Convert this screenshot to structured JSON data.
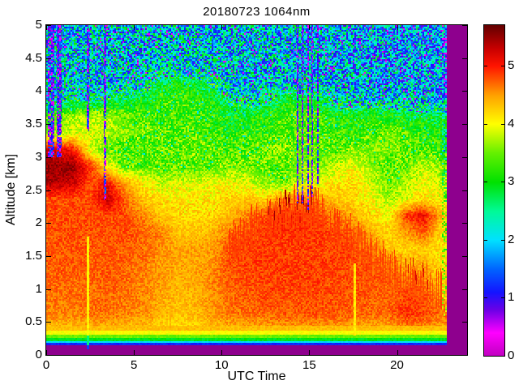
{
  "figure": {
    "title": "20180723 1064nm",
    "background_color": "#FFFFFF"
  },
  "chart_data": {
    "type": "heatmap",
    "title": "20180723 1064nm",
    "xlabel": "UTC Time",
    "ylabel": "Altitude [km]",
    "x_range": [
      0,
      24
    ],
    "x_ticks": [
      0,
      5,
      10,
      15,
      20
    ],
    "y_range": [
      0,
      5
    ],
    "y_ticks": [
      0,
      0.5,
      1,
      1.5,
      2,
      2.5,
      3,
      3.5,
      4,
      4.5,
      5
    ],
    "data_end_time": 22.8,
    "no_data_color": "#8E008E",
    "colorbar": {
      "range": [
        0,
        5.7
      ],
      "ticks": [
        0,
        1,
        2,
        3,
        4,
        5
      ],
      "position": "right"
    },
    "colormap_stops": [
      [
        0.0,
        "#C000C0"
      ],
      [
        0.4,
        "#FF00FF"
      ],
      [
        0.8,
        "#6A00E6"
      ],
      [
        1.1,
        "#1414FF"
      ],
      [
        1.5,
        "#0064FF"
      ],
      [
        2.0,
        "#00E1FF"
      ],
      [
        2.5,
        "#00FA96"
      ],
      [
        3.0,
        "#00E100"
      ],
      [
        3.5,
        "#64F000"
      ],
      [
        4.0,
        "#FFFF00"
      ],
      [
        4.5,
        "#FFA000"
      ],
      [
        5.0,
        "#FF1400"
      ],
      [
        5.3,
        "#C80000"
      ],
      [
        5.7,
        "#640000"
      ]
    ],
    "grid": {
      "description": "Coarse attenuated-backscatter field (log-scaled colorbar units 0-5.7). Columns are hourly bins centered 0.5..23.5 UTC; rows are 0.25 km bins from 4.875 km (top) down to 0.125 km.",
      "t_center_start": 0.5,
      "t_step": 1.0,
      "z_top": 4.875,
      "z_step": 0.25,
      "values_rows_top_to_bottom": [
        [
          2.1,
          2.1,
          2.05,
          2.05,
          2.0,
          2.05,
          2.1,
          2.1,
          2.05,
          2.0,
          2.0,
          1.95,
          2.0,
          2.0,
          2.05,
          2.0,
          1.9,
          1.85,
          1.8,
          1.85,
          1.8,
          1.85,
          1.8,
          1.8
        ],
        [
          2.15,
          2.1,
          2.1,
          2.05,
          2.05,
          2.1,
          2.1,
          2.1,
          2.05,
          2.05,
          2.0,
          2.0,
          2.0,
          2.05,
          2.0,
          2.0,
          1.9,
          1.85,
          1.85,
          1.8,
          1.85,
          1.8,
          1.8,
          1.8
        ],
        [
          2.2,
          2.15,
          2.1,
          2.1,
          2.1,
          2.1,
          2.15,
          2.1,
          2.1,
          2.05,
          2.05,
          2.0,
          2.05,
          2.0,
          2.05,
          2.0,
          1.95,
          1.9,
          1.85,
          1.85,
          1.8,
          1.85,
          1.8,
          1.8
        ],
        [
          2.2,
          2.2,
          2.15,
          2.1,
          2.15,
          2.2,
          2.9,
          3.0,
          2.9,
          2.6,
          2.1,
          2.05,
          2.1,
          2.1,
          2.1,
          2.05,
          2.0,
          1.95,
          1.9,
          1.9,
          1.85,
          1.85,
          1.8,
          1.8
        ],
        [
          2.5,
          2.6,
          2.6,
          2.7,
          2.9,
          3.0,
          3.2,
          3.3,
          3.2,
          3.1,
          2.5,
          2.4,
          2.5,
          3.0,
          3.0,
          2.9,
          2.3,
          2.2,
          2.2,
          2.1,
          2.1,
          2.0,
          2.0,
          2.0
        ],
        [
          3.4,
          3.7,
          3.8,
          3.7,
          3.5,
          3.4,
          3.3,
          3.3,
          3.3,
          3.2,
          3.0,
          3.0,
          3.1,
          3.3,
          3.4,
          3.3,
          3.1,
          3.0,
          3.2,
          3.1,
          3.0,
          2.9,
          2.9,
          2.9
        ],
        [
          3.6,
          3.9,
          3.9,
          3.8,
          3.6,
          3.5,
          3.4,
          3.3,
          3.4,
          3.3,
          3.2,
          3.2,
          3.3,
          3.4,
          3.4,
          3.4,
          3.3,
          3.2,
          3.4,
          3.5,
          3.3,
          3.2,
          3.1,
          3.1
        ],
        [
          5.2,
          5.0,
          3.9,
          3.4,
          3.3,
          3.3,
          3.4,
          3.4,
          3.5,
          3.4,
          3.3,
          3.4,
          3.5,
          3.5,
          3.5,
          3.5,
          3.4,
          3.5,
          3.6,
          3.6,
          3.4,
          3.3,
          3.2,
          3.2
        ],
        [
          5.5,
          5.5,
          4.9,
          4.0,
          3.4,
          3.4,
          3.4,
          3.4,
          3.4,
          3.4,
          3.5,
          3.5,
          3.4,
          3.4,
          3.6,
          3.6,
          3.8,
          4.0,
          3.6,
          3.3,
          3.5,
          3.8,
          3.6,
          3.6
        ],
        [
          5.4,
          5.3,
          4.8,
          5.0,
          4.4,
          4.1,
          3.8,
          3.9,
          3.9,
          4.0,
          4.0,
          3.9,
          3.6,
          3.5,
          3.8,
          3.9,
          4.1,
          4.2,
          3.9,
          3.5,
          3.7,
          4.0,
          3.8,
          3.8
        ],
        [
          4.8,
          4.8,
          4.8,
          5.3,
          4.7,
          4.3,
          4.1,
          4.1,
          4.1,
          4.1,
          4.2,
          4.3,
          4.2,
          4.5,
          4.6,
          4.5,
          4.3,
          4.2,
          4.0,
          3.7,
          3.9,
          4.2,
          4.0,
          4.0
        ],
        [
          4.8,
          4.8,
          4.8,
          4.8,
          4.8,
          4.6,
          4.3,
          4.2,
          4.2,
          4.2,
          4.4,
          4.6,
          4.8,
          5.0,
          5.0,
          4.8,
          4.6,
          4.4,
          4.2,
          4.0,
          4.9,
          5.1,
          4.4,
          4.4
        ],
        [
          4.8,
          4.8,
          4.8,
          4.8,
          4.8,
          4.7,
          4.6,
          4.3,
          4.3,
          4.4,
          4.6,
          4.8,
          4.9,
          4.9,
          4.9,
          4.9,
          4.8,
          4.7,
          4.4,
          4.2,
          4.5,
          4.8,
          4.2,
          4.2
        ],
        [
          4.75,
          4.75,
          4.75,
          4.75,
          4.75,
          4.7,
          4.55,
          4.45,
          4.45,
          4.5,
          4.8,
          4.85,
          4.85,
          4.85,
          4.85,
          4.85,
          4.85,
          4.8,
          4.6,
          4.3,
          4.2,
          4.3,
          4.1,
          4.1
        ],
        [
          4.75,
          4.75,
          4.75,
          4.75,
          4.7,
          4.65,
          4.5,
          4.45,
          4.45,
          4.55,
          4.8,
          4.85,
          4.85,
          4.85,
          4.85,
          4.85,
          4.85,
          4.8,
          4.8,
          4.6,
          4.4,
          4.4,
          4.2,
          4.2
        ],
        [
          4.7,
          4.7,
          4.7,
          4.75,
          4.7,
          4.6,
          4.5,
          4.4,
          4.45,
          4.6,
          4.75,
          4.8,
          4.85,
          4.85,
          4.85,
          4.85,
          4.8,
          4.8,
          4.8,
          4.7,
          4.7,
          4.6,
          4.3,
          4.3
        ],
        [
          4.65,
          4.65,
          4.7,
          4.7,
          4.65,
          4.6,
          4.45,
          4.35,
          4.4,
          4.55,
          4.7,
          4.75,
          4.8,
          4.8,
          4.8,
          4.8,
          4.8,
          4.75,
          4.75,
          4.7,
          4.85,
          4.8,
          4.6,
          4.6
        ],
        [
          4.6,
          4.6,
          4.65,
          4.65,
          4.6,
          4.55,
          4.4,
          4.3,
          4.35,
          4.5,
          4.65,
          4.7,
          4.7,
          4.75,
          4.75,
          4.75,
          4.75,
          4.7,
          4.7,
          4.7,
          4.9,
          4.85,
          4.7,
          4.7
        ],
        [
          4.3,
          4.3,
          4.35,
          4.35,
          4.3,
          4.3,
          4.2,
          4.15,
          4.2,
          4.3,
          4.35,
          4.4,
          4.4,
          4.45,
          4.45,
          4.45,
          4.45,
          4.4,
          4.4,
          4.4,
          4.55,
          4.5,
          4.4,
          4.4
        ],
        [
          3.0,
          3.0,
          3.0,
          3.0,
          3.0,
          3.0,
          3.0,
          3.0,
          3.0,
          3.0,
          3.0,
          3.0,
          3.0,
          3.0,
          3.0,
          3.0,
          3.0,
          3.0,
          3.0,
          3.0,
          3.0,
          3.0,
          3.0,
          3.0
        ]
      ]
    },
    "aerosol_layer_top_km": [
      3.0,
      2.95,
      2.85,
      2.7,
      2.55,
      2.3,
      1.9,
      1.65,
      1.55,
      1.6,
      1.75,
      1.95,
      2.1,
      2.25,
      2.3,
      2.25,
      2.05,
      1.85,
      1.6,
      1.4,
      1.25,
      1.15,
      1.05,
      1.0
    ],
    "surface_bands": [
      {
        "z0": 0.0,
        "z1": 0.15,
        "type": "no_data"
      },
      {
        "z0": 0.15,
        "z1": 0.185,
        "value": 1.2
      },
      {
        "z0": 0.185,
        "z1": 0.21,
        "value": 2.0
      },
      {
        "z0": 0.21,
        "z1": 0.27,
        "value": 2.9
      },
      {
        "z0": 0.27,
        "z1": 0.31,
        "value": 3.5
      },
      {
        "z0": 0.31,
        "z1": 0.37,
        "value": 4.0
      },
      {
        "z0": 0.37,
        "z1": 0.45,
        "value": 4.35
      }
    ],
    "attenuation_gaps": [
      {
        "t0": 0.05,
        "t1": 0.45,
        "z0": 3.0,
        "z1": 5.0
      },
      {
        "t0": 0.6,
        "t1": 0.85,
        "z0": 3.0,
        "z1": 5.0
      },
      {
        "t0": 2.3,
        "t1": 2.42,
        "z0": 3.4,
        "z1": 5.0
      },
      {
        "t0": 3.25,
        "t1": 3.4,
        "z0": 2.35,
        "z1": 5.0
      },
      {
        "t0": 14.25,
        "t1": 14.35,
        "z0": 2.3,
        "z1": 5.0
      },
      {
        "t0": 14.55,
        "t1": 14.65,
        "z0": 2.3,
        "z1": 5.0
      },
      {
        "t0": 14.85,
        "t1": 14.95,
        "z0": 2.2,
        "z1": 5.0
      },
      {
        "t0": 15.1,
        "t1": 15.2,
        "z0": 2.4,
        "z1": 5.0
      },
      {
        "t0": 15.4,
        "t1": 15.5,
        "z0": 2.6,
        "z1": 5.0
      }
    ],
    "plumes": [
      {
        "t0": 2.29,
        "t1": 2.43,
        "z0": 0.09,
        "z1": 1.8,
        "value": 4.05
      },
      {
        "t0": 17.52,
        "t1": 17.66,
        "z0": 0.3,
        "z1": 1.4,
        "value": 4.1
      }
    ],
    "spike_regions": [
      {
        "t0": 10.3,
        "t1": 17.4,
        "density": 0.55,
        "max_extra_km": 0.32,
        "value": 4.85,
        "tip_t0": 12.3,
        "tip_t1": 15.4,
        "tip_value": 5.45
      },
      {
        "t0": 17.4,
        "t1": 22.6,
        "density": 0.45,
        "max_extra_km": 0.28,
        "value": 4.8,
        "tip_t0": 20.4,
        "tip_t1": 22.0,
        "tip_value": 5.2
      }
    ]
  },
  "axis_tick_labels": {
    "x": [
      "0",
      "5",
      "10",
      "15",
      "20"
    ],
    "y": [
      "0",
      "0.5",
      "1",
      "1.5",
      "2",
      "2.5",
      "3",
      "3.5",
      "4",
      "4.5",
      "5"
    ],
    "colorbar": [
      "0",
      "1",
      "2",
      "3",
      "4",
      "5"
    ]
  }
}
